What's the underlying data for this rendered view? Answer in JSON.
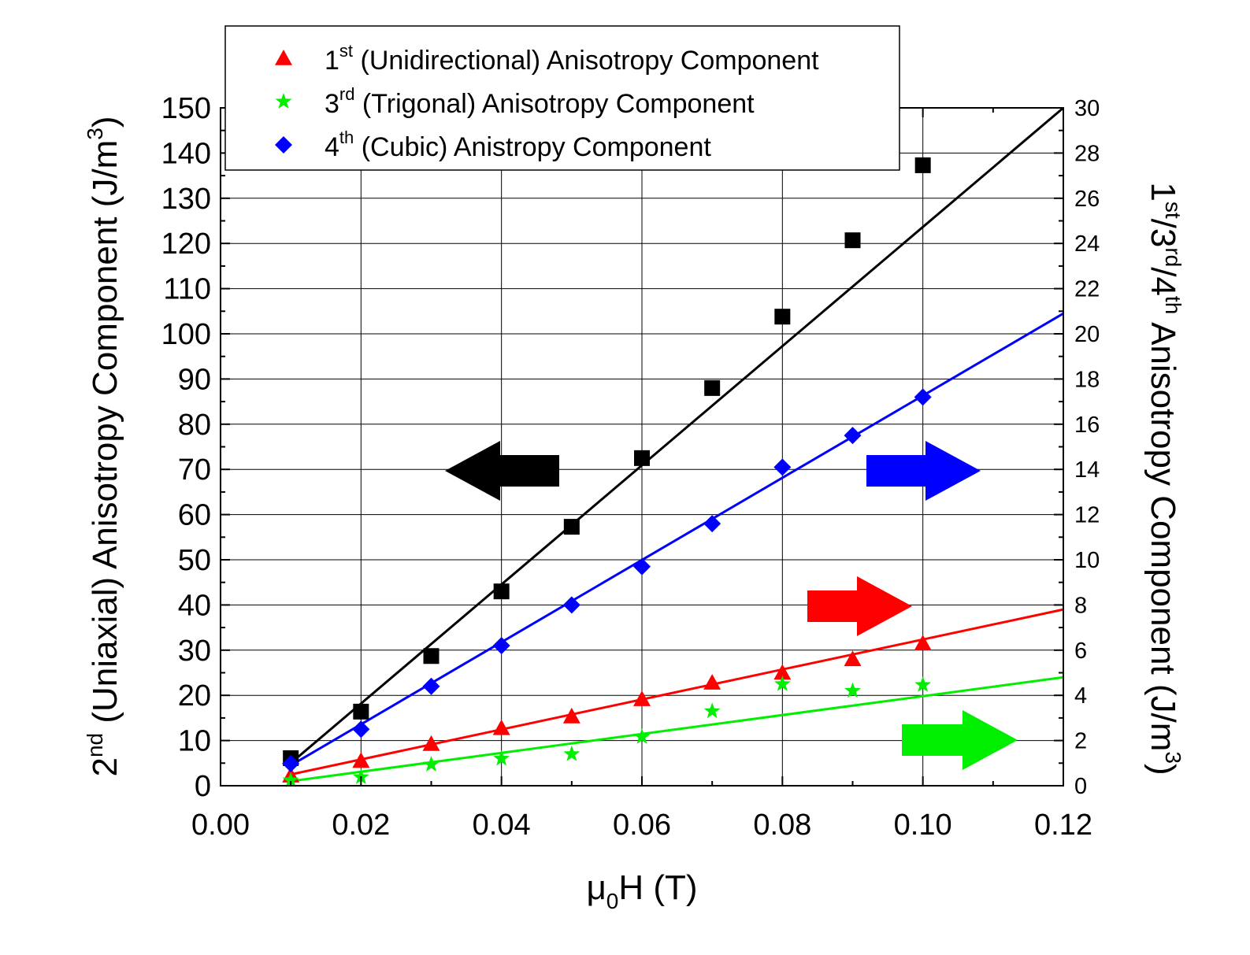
{
  "chart_data": {
    "type": "scatter",
    "xlabel": {
      "base": "μ",
      "sub": "0",
      "rest": "H (T)"
    },
    "ylabel_left": {
      "sup": "nd",
      "pre": "2",
      "rest": " (Uniaxial) Anisotropy Component (J/m",
      "sup2": "3",
      "end": ")"
    },
    "ylabel_right": {
      "p1": "1",
      "s1": "st",
      "p2": "/3",
      "s2": "rd",
      "p3": "/4",
      "s3": "th",
      "p4": " Anisotropy Component (J/m",
      "s4": "3",
      "p5": ")"
    },
    "xlim": [
      0,
      0.12
    ],
    "ylim_left": [
      0,
      150
    ],
    "ylim_right": [
      0,
      30
    ],
    "grid": true,
    "legend_placement": "top",
    "x_ticks": [
      "0.00",
      "0.02",
      "0.04",
      "0.06",
      "0.08",
      "0.10",
      "0.12"
    ],
    "y_ticks_left": [
      "0",
      "10",
      "20",
      "30",
      "40",
      "50",
      "60",
      "70",
      "80",
      "90",
      "100",
      "110",
      "120",
      "130",
      "140",
      "150"
    ],
    "y_ticks_right": [
      "0",
      "2",
      "4",
      "6",
      "8",
      "10",
      "12",
      "14",
      "16",
      "18",
      "20",
      "22",
      "24",
      "26",
      "28",
      "30"
    ],
    "x": [
      0.01,
      0.02,
      0.03,
      0.04,
      0.05,
      0.06,
      0.07,
      0.08,
      0.09,
      0.1
    ],
    "series": [
      {
        "key": "uniaxial",
        "axis": "left",
        "marker": "square",
        "color": "#000000",
        "values": [
          6.1,
          16.4,
          28.7,
          43.0,
          57.3,
          72.5,
          88.0,
          103.8,
          120.7,
          137.3
        ],
        "fit": [
          [
            0.01,
            5.0
          ],
          [
            0.12,
            150.0
          ]
        ],
        "arrow": "left"
      },
      {
        "key": "unidirectional",
        "axis": "right",
        "marker": "triangle",
        "color": "#ff0000",
        "name_pre": "1",
        "name_sup": "st",
        "name_rest": " (Unidirectional) Anisotropy Component",
        "values": [
          0.45,
          1.1,
          1.85,
          2.55,
          3.07,
          3.83,
          4.56,
          5.0,
          5.6,
          6.3
        ],
        "fit": [
          [
            0.01,
            0.5
          ],
          [
            0.12,
            7.8
          ]
        ],
        "arrow": "right"
      },
      {
        "key": "trigonal",
        "axis": "right",
        "marker": "star",
        "color": "#00ee00",
        "name_pre": "3",
        "name_sup": "rd",
        "name_rest": " (Trigonal) Anisotropy Component",
        "values": [
          0.24,
          0.38,
          0.94,
          1.2,
          1.4,
          2.16,
          3.3,
          4.5,
          4.2,
          4.46
        ],
        "fit": [
          [
            0.01,
            0.2
          ],
          [
            0.12,
            4.8
          ]
        ],
        "arrow": "right"
      },
      {
        "key": "cubic",
        "axis": "right",
        "marker": "diamond",
        "color": "#0000ff",
        "name_pre": "4",
        "name_sup": "th",
        "name_rest": " (Cubic) Anistropy Component",
        "values": [
          0.98,
          2.5,
          4.4,
          6.2,
          8.0,
          9.7,
          11.6,
          14.1,
          15.5,
          17.2
        ],
        "fit": [
          [
            0.01,
            0.9
          ],
          [
            0.12,
            20.9
          ]
        ],
        "arrow": "right"
      }
    ],
    "legend_order": [
      "unidirectional",
      "trigonal",
      "cubic"
    ]
  }
}
